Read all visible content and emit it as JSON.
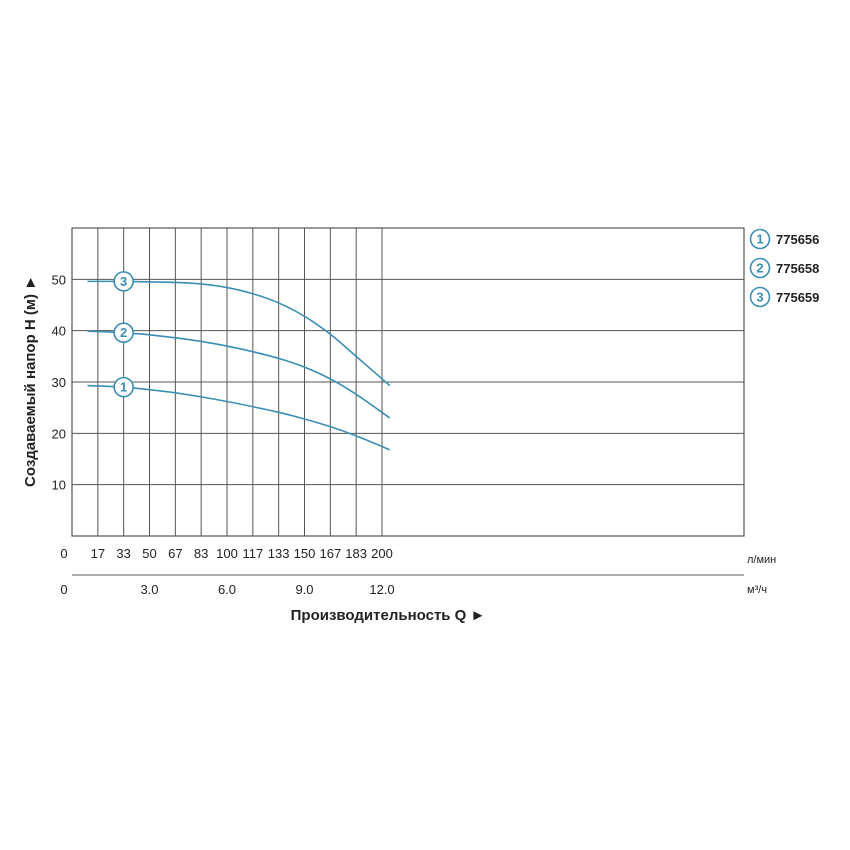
{
  "chart_data": {
    "type": "line",
    "ylabel": "Создаваемый напор H (м) ►",
    "xlabel": "Производительность Q ►",
    "x_unit_primary": "л/мин",
    "x_unit_secondary": "м³/ч",
    "xlim": [
      0,
      210
    ],
    "ylim": [
      0,
      60
    ],
    "grid": true,
    "legend_position": "right",
    "line_color": "#3a8fb5",
    "x_ticks_primary": [
      "0",
      "17",
      "33",
      "50",
      "67",
      "83",
      "100",
      "117",
      "133",
      "150",
      "167",
      "183",
      "200"
    ],
    "x_ticks_primary_values": [
      0,
      16.67,
      33.33,
      50,
      66.67,
      83.33,
      100,
      116.67,
      133.33,
      150,
      166.67,
      183.33,
      200
    ],
    "x_ticks_secondary": [
      "0",
      "3.0",
      "6.0",
      "9.0",
      "12.0"
    ],
    "x_ticks_secondary_values": [
      0,
      50,
      100,
      150,
      200
    ],
    "y_ticks": [
      "10",
      "20",
      "30",
      "40",
      "50"
    ],
    "y_ticks_values": [
      10,
      20,
      30,
      40,
      50
    ],
    "series": [
      {
        "name": "775656",
        "marker": "1",
        "marker_x": 33.33,
        "x": [
          10,
          20,
          33.33,
          50,
          66.67,
          83.33,
          100,
          116.67,
          133.33,
          150,
          166.67,
          183.33,
          205
        ],
        "y": [
          29.3,
          29.2,
          29.0,
          28.5,
          27.9,
          27.1,
          26.2,
          25.2,
          24.1,
          22.8,
          21.3,
          19.5,
          16.8
        ]
      },
      {
        "name": "775658",
        "marker": "2",
        "marker_x": 33.33,
        "x": [
          10,
          20,
          33.33,
          50,
          66.67,
          83.33,
          100,
          116.67,
          133.33,
          150,
          166.67,
          183.33,
          205
        ],
        "y": [
          39.9,
          39.8,
          39.6,
          39.2,
          38.6,
          37.9,
          37.0,
          35.9,
          34.6,
          32.9,
          30.6,
          27.6,
          23.0
        ]
      },
      {
        "name": "775659",
        "marker": "3",
        "marker_x": 33.33,
        "x": [
          10,
          20,
          33.33,
          50,
          66.67,
          83.33,
          100,
          116.67,
          133.33,
          150,
          166.67,
          183.33,
          205
        ],
        "y": [
          49.6,
          49.6,
          49.6,
          49.5,
          49.4,
          49.1,
          48.4,
          47.2,
          45.4,
          42.8,
          39.3,
          35.0,
          29.3
        ]
      }
    ]
  }
}
